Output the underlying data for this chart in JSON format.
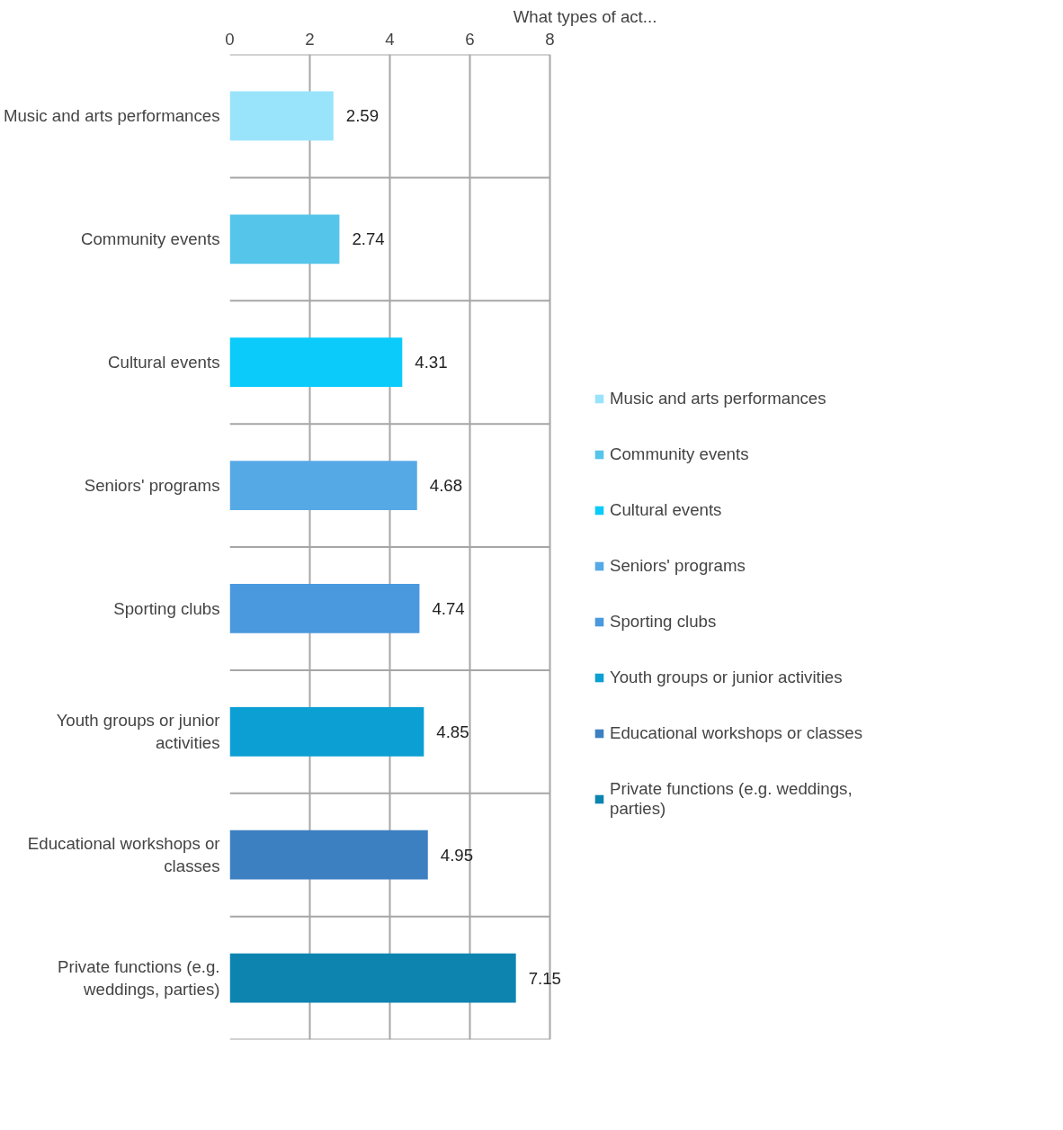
{
  "chart_data": {
    "type": "bar",
    "orientation": "horizontal",
    "stacked": true,
    "title": "What types of act...",
    "categories": [
      "Music and arts performances",
      "Community events",
      "Cultural events",
      "Seniors' programs",
      "Sporting clubs",
      "Youth groups or junior activities",
      "Educational workshops or classes",
      "Private functions (e.g. weddings, parties)"
    ],
    "series": [
      {
        "name": "Music and arts performances",
        "color": "#99e3fb",
        "values": [
          2.59,
          null,
          null,
          null,
          null,
          null,
          null,
          null
        ]
      },
      {
        "name": "Community events",
        "color": "#56c5ea",
        "values": [
          null,
          2.74,
          null,
          null,
          null,
          null,
          null,
          null
        ]
      },
      {
        "name": "Cultural events",
        "color": "#0acbf9",
        "values": [
          null,
          null,
          4.31,
          null,
          null,
          null,
          null,
          null
        ]
      },
      {
        "name": "Seniors' programs",
        "color": "#55a9e5",
        "values": [
          null,
          null,
          null,
          4.68,
          null,
          null,
          null,
          null
        ]
      },
      {
        "name": "Sporting clubs",
        "color": "#4a98de",
        "values": [
          null,
          null,
          null,
          null,
          4.74,
          null,
          null,
          null
        ]
      },
      {
        "name": "Youth groups or junior activities",
        "color": "#0c9fd4",
        "values": [
          null,
          null,
          null,
          null,
          null,
          4.85,
          null,
          null
        ]
      },
      {
        "name": "Educational workshops or classes",
        "color": "#3d80c2",
        "values": [
          null,
          null,
          null,
          null,
          null,
          null,
          4.95,
          null
        ]
      },
      {
        "name": "Private functions (e.g. weddings, parties)",
        "color": "#0d84b0",
        "values": [
          null,
          null,
          null,
          null,
          null,
          null,
          null,
          7.15
        ]
      }
    ],
    "xlim": [
      0,
      8
    ],
    "xticks": [
      0,
      2,
      4,
      6,
      8
    ],
    "grid": true,
    "legend": "right",
    "data_labels": true
  }
}
